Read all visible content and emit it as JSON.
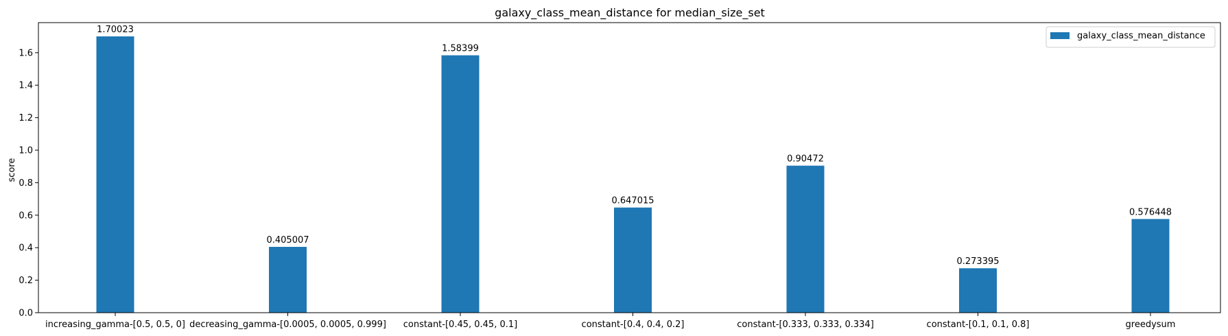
{
  "chart_data": {
    "type": "bar",
    "title": "galaxy_class_mean_distance for median_size_set",
    "xlabel": "",
    "ylabel": "score",
    "categories": [
      "increasing_gamma-[0.5, 0.5, 0]",
      "decreasing_gamma-[0.0005, 0.0005, 0.999]",
      "constant-[0.45, 0.45, 0.1]",
      "constant-[0.4, 0.4, 0.2]",
      "constant-[0.333, 0.333, 0.334]",
      "constant-[0.1, 0.1, 0.8]",
      "greedysum"
    ],
    "series": [
      {
        "name": "galaxy_class_mean_distance",
        "values": [
          1.70023,
          0.405007,
          1.58399,
          0.647015,
          0.90472,
          0.273395,
          0.576448
        ],
        "labels": [
          "1.70023",
          "0.405007",
          "1.58399",
          "0.647015",
          "0.90472",
          "0.273395",
          "0.576448"
        ],
        "color": "#1f77b4"
      }
    ],
    "ylim": [
      0,
      1.785
    ],
    "yticks": [
      0.0,
      0.2,
      0.4,
      0.6,
      0.8,
      1.0,
      1.2,
      1.4,
      1.6
    ],
    "ytick_labels": [
      "0.0",
      "0.2",
      "0.4",
      "0.6",
      "0.8",
      "1.0",
      "1.2",
      "1.4",
      "1.6"
    ],
    "grid": false,
    "legend_position": "top-right"
  }
}
